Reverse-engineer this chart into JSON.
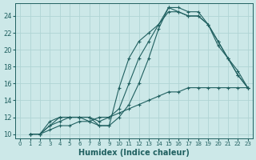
{
  "xlabel": "Humidex (Indice chaleur)",
  "ylabel": "",
  "xlim": [
    -0.5,
    23.5
  ],
  "ylim": [
    9.5,
    25.5
  ],
  "xticks": [
    0,
    1,
    2,
    3,
    4,
    5,
    6,
    7,
    8,
    9,
    10,
    11,
    12,
    13,
    14,
    15,
    16,
    17,
    18,
    19,
    20,
    21,
    22,
    23
  ],
  "yticks": [
    10,
    12,
    14,
    16,
    18,
    20,
    22,
    24
  ],
  "background_color": "#cce8e8",
  "grid_color": "#b0d4d4",
  "line_color": "#206060",
  "lines": [
    {
      "x": [
        1,
        2,
        3,
        4,
        5,
        6,
        7,
        8,
        9,
        10,
        11,
        12,
        13,
        14,
        15,
        16,
        17,
        18,
        19,
        20,
        21,
        22,
        23
      ],
      "y": [
        10,
        10,
        10.5,
        11,
        11,
        11.5,
        11.5,
        12,
        12,
        12.5,
        13,
        13.5,
        14,
        14.5,
        15,
        15,
        15.5,
        15.5,
        15.5,
        15.5,
        15.5,
        15.5,
        15.5
      ]
    },
    {
      "x": [
        1,
        2,
        3,
        4,
        5,
        6,
        7,
        8,
        9,
        10,
        11,
        12,
        13,
        14,
        15,
        16,
        17,
        18,
        19,
        20,
        21,
        22,
        23
      ],
      "y": [
        10,
        10,
        11.5,
        12,
        12,
        12,
        11.5,
        11,
        11,
        12,
        13.5,
        16,
        19,
        22.5,
        25,
        25,
        24.5,
        24.5,
        23,
        21,
        19,
        17,
        15.5
      ]
    },
    {
      "x": [
        1,
        2,
        3,
        4,
        5,
        6,
        7,
        8,
        9,
        10,
        11,
        12,
        13,
        14,
        15,
        16,
        17,
        18,
        19,
        20,
        21,
        22,
        23
      ],
      "y": [
        10,
        10,
        11,
        11.5,
        12,
        12,
        12,
        11,
        11,
        15.5,
        19,
        21,
        22,
        23,
        25,
        24.5,
        24,
        24,
        23,
        20.5,
        19,
        17.5,
        15.5
      ]
    },
    {
      "x": [
        1,
        2,
        3,
        4,
        5,
        6,
        7,
        8,
        9,
        10,
        11,
        12,
        13,
        14,
        15,
        16,
        17,
        18,
        19,
        20,
        21,
        22,
        23
      ],
      "y": [
        10,
        10,
        11,
        12,
        12,
        12,
        12,
        11.5,
        12,
        13,
        16,
        19,
        21,
        23,
        24.5,
        24.5,
        24,
        24,
        23,
        21,
        19,
        17,
        15.5
      ]
    }
  ]
}
